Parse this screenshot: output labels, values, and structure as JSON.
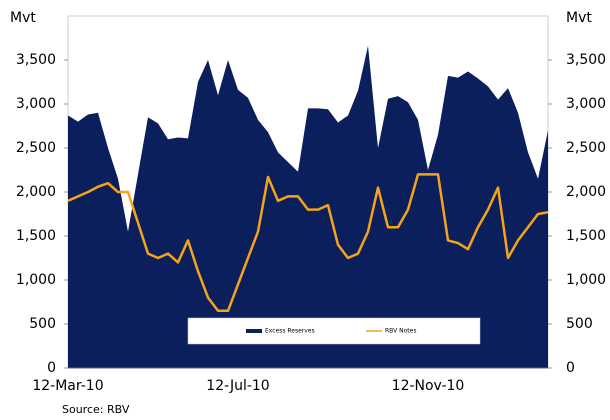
{
  "chart_data": {
    "type": "area-line",
    "y_label": "Mvt",
    "y2_label": "Mvt",
    "source": "Source: RBV",
    "categories": [
      "12-Mar-10",
      null,
      null,
      null,
      null,
      null,
      null,
      null,
      null,
      null,
      null,
      null,
      null,
      null,
      null,
      null,
      null,
      "12-Jul-10",
      null,
      null,
      null,
      null,
      null,
      null,
      null,
      null,
      null,
      null,
      null,
      null,
      null,
      null,
      null,
      null,
      null,
      null,
      "12-Nov-10",
      null,
      null,
      null,
      null,
      null,
      null,
      null,
      null,
      null,
      null,
      null,
      null
    ],
    "series": [
      {
        "name": "Excess Reserves",
        "color": "#0b1f5c",
        "kind": "area",
        "values": [
          2870,
          2800,
          2880,
          2900,
          2500,
          2150,
          1550,
          2200,
          2850,
          2780,
          2600,
          2620,
          2610,
          3250,
          3500,
          3100,
          3500,
          3160,
          3070,
          2820,
          2680,
          2450,
          2340,
          2230,
          2950,
          2950,
          2940,
          2790,
          2870,
          3150,
          3660,
          2500,
          3060,
          3090,
          3020,
          2820,
          2250,
          2650,
          3320,
          3300,
          3370,
          3290,
          3200,
          3050,
          3180,
          2900,
          2450,
          2150,
          2700
        ]
      },
      {
        "name": "RBV Notes",
        "color": "#f5a31a",
        "kind": "line",
        "axis": "y2",
        "values": [
          1900,
          1950,
          2000,
          2060,
          2100,
          2000,
          2000,
          1650,
          1300,
          1250,
          1300,
          1200,
          1450,
          1100,
          800,
          650,
          650,
          950,
          1250,
          1550,
          2170,
          1900,
          1950,
          1950,
          1800,
          1800,
          1850,
          1400,
          1250,
          1300,
          1550,
          2050,
          1600,
          1600,
          1800,
          2200,
          2200,
          2200,
          1450,
          1420,
          1350,
          1600,
          1800,
          2050,
          1250,
          1450,
          1600,
          1750,
          1770
        ]
      }
    ],
    "ylim": [
      0,
      4000
    ],
    "yticks": [
      0,
      500,
      {
        "value": 1000,
        "label": "1,000"
      },
      {
        "value": 1500,
        "label": "1,500"
      },
      {
        "value": 2000,
        "label": "2,000"
      },
      {
        "value": 2500,
        "label": "2,500"
      },
      {
        "value": 3000,
        "label": "3,000"
      },
      {
        "value": 3500,
        "label": "3,500"
      }
    ],
    "y2lim": [
      0,
      4000
    ],
    "y2ticks": [
      0,
      500,
      {
        "value": 1000,
        "label": "1,000"
      },
      {
        "value": 1500,
        "label": "1,500"
      },
      {
        "value": 2000,
        "label": "2,000"
      },
      {
        "value": 2500,
        "label": "2,500"
      },
      {
        "value": 3000,
        "label": "3,000"
      },
      {
        "value": 3500,
        "label": "3,500"
      }
    ],
    "legend": "bottom"
  }
}
